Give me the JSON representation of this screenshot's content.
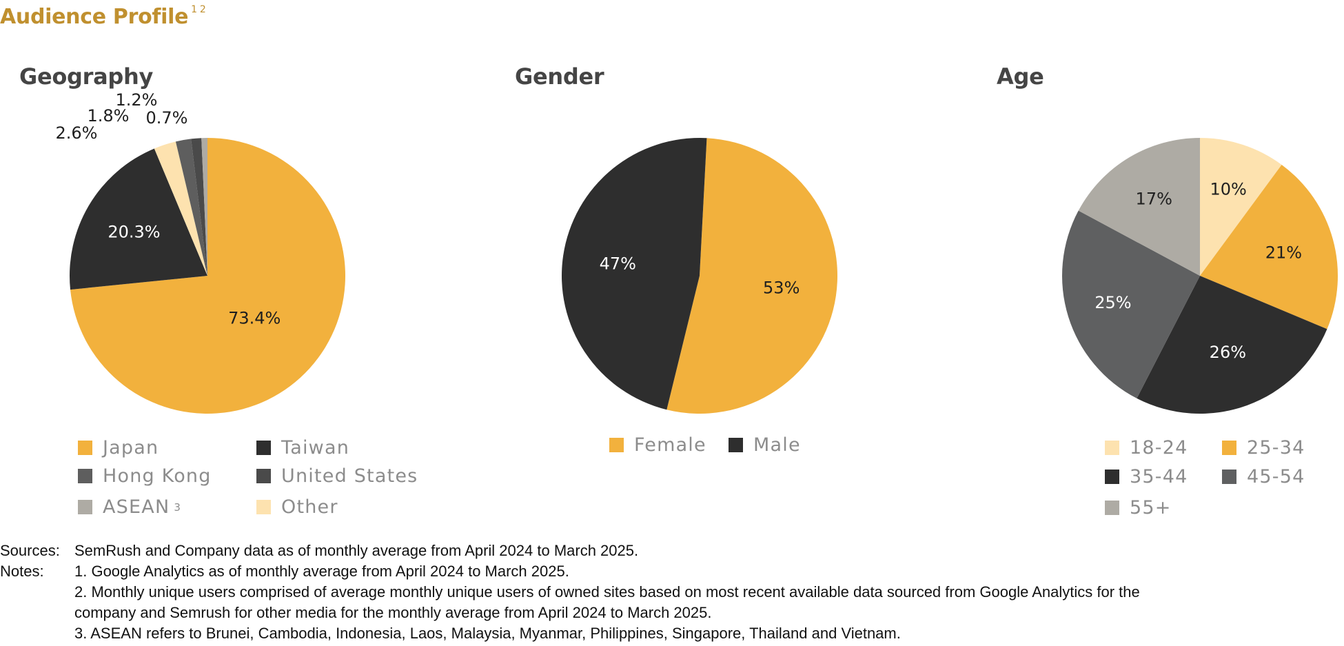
{
  "page": {
    "title": "Audience Profile",
    "title_sup": "1 2"
  },
  "colors": {
    "gold": "#f2b13d",
    "charcoal": "#2e2e2e",
    "hong_kong": "#5e5e5e",
    "united_states": "#4a4a4a",
    "asean": "#aeaba4",
    "cream": "#fde2af",
    "grey": "#5f6061",
    "title_gold": "#c0902f"
  },
  "chart_data": [
    {
      "type": "pie",
      "title": "Geography",
      "slices": [
        {
          "label": "Japan",
          "value": 73.4,
          "label_text": "73.4%",
          "color": "#f2b13d",
          "text_color": "#1f1f1f"
        },
        {
          "label": "Taiwan",
          "value": 20.3,
          "label_text": "20.3%",
          "color": "#2e2e2e",
          "text_color": "#ffffff"
        },
        {
          "label": "Other",
          "value": 2.6,
          "label_text": "2.6%",
          "color": "#fde2af",
          "text_color": "#1f1f1f"
        },
        {
          "label": "Hong Kong",
          "value": 1.8,
          "label_text": "1.8%",
          "color": "#5e5e5e",
          "text_color": "#1f1f1f"
        },
        {
          "label": "United States",
          "value": 1.2,
          "label_text": "1.2%",
          "color": "#4a4a4a",
          "text_color": "#1f1f1f"
        },
        {
          "label": "ASEAN",
          "value": 0.7,
          "label_text": "0.7%",
          "color": "#aeaba4",
          "text_color": "#1f1f1f"
        }
      ],
      "legend": [
        {
          "label": "Japan",
          "color": "#f2b13d",
          "sup": ""
        },
        {
          "label": "Taiwan",
          "color": "#2e2e2e",
          "sup": ""
        },
        {
          "label": "Hong Kong",
          "color": "#5e5e5e",
          "sup": ""
        },
        {
          "label": "United States",
          "color": "#4a4a4a",
          "sup": ""
        },
        {
          "label": "ASEAN",
          "color": "#aeaba4",
          "sup": "3"
        },
        {
          "label": "Other",
          "color": "#fde2af",
          "sup": ""
        }
      ]
    },
    {
      "type": "pie",
      "title": "Gender",
      "slices": [
        {
          "label": "Female",
          "value": 53,
          "label_text": "53%",
          "color": "#f2b13d",
          "text_color": "#1f1f1f"
        },
        {
          "label": "Male",
          "value": 47,
          "label_text": "47%",
          "color": "#2e2e2e",
          "text_color": "#ffffff"
        }
      ],
      "legend": [
        {
          "label": "Female",
          "color": "#f2b13d",
          "sup": ""
        },
        {
          "label": "Male",
          "color": "#2e2e2e",
          "sup": ""
        }
      ]
    },
    {
      "type": "pie",
      "title": "Age",
      "slices": [
        {
          "label": "18-24",
          "value": 10,
          "label_text": "10%",
          "color": "#fde2af",
          "text_color": "#1f1f1f"
        },
        {
          "label": "25-34",
          "value": 21,
          "label_text": "21%",
          "color": "#f2b13d",
          "text_color": "#1f1f1f"
        },
        {
          "label": "35-44",
          "value": 26,
          "label_text": "26%",
          "color": "#2e2e2e",
          "text_color": "#ffffff"
        },
        {
          "label": "45-54",
          "value": 25,
          "label_text": "25%",
          "color": "#5f6061",
          "text_color": "#ffffff"
        },
        {
          "label": "55+",
          "value": 17,
          "label_text": "17%",
          "color": "#aeaba4",
          "text_color": "#1f1f1f"
        }
      ],
      "legend": [
        {
          "label": "18-24",
          "color": "#fde2af",
          "sup": ""
        },
        {
          "label": "25-34",
          "color": "#f2b13d",
          "sup": ""
        },
        {
          "label": "35-44",
          "color": "#2e2e2e",
          "sup": ""
        },
        {
          "label": "45-54",
          "color": "#5f6061",
          "sup": ""
        },
        {
          "label": "55+",
          "color": "#aeaba4",
          "sup": ""
        }
      ]
    }
  ],
  "footer": {
    "sources_label": "Sources:",
    "sources_text": "SemRush and Company data as of monthly average from April 2024 to March 2025.",
    "notes_label": "Notes:",
    "notes": [
      "1. Google Analytics as of monthly average from April 2024 to March 2025.",
      "2. Monthly unique users comprised of average monthly unique users of owned sites based on most recent available data sourced from Google Analytics for the",
      "company and Semrush for other media for the monthly average from April 2024 to March 2025.",
      "3. ASEAN refers to Brunei, Cambodia, Indonesia, Laos, Malaysia, Myanmar, Philippines, Singapore, Thailand and Vietnam."
    ]
  }
}
